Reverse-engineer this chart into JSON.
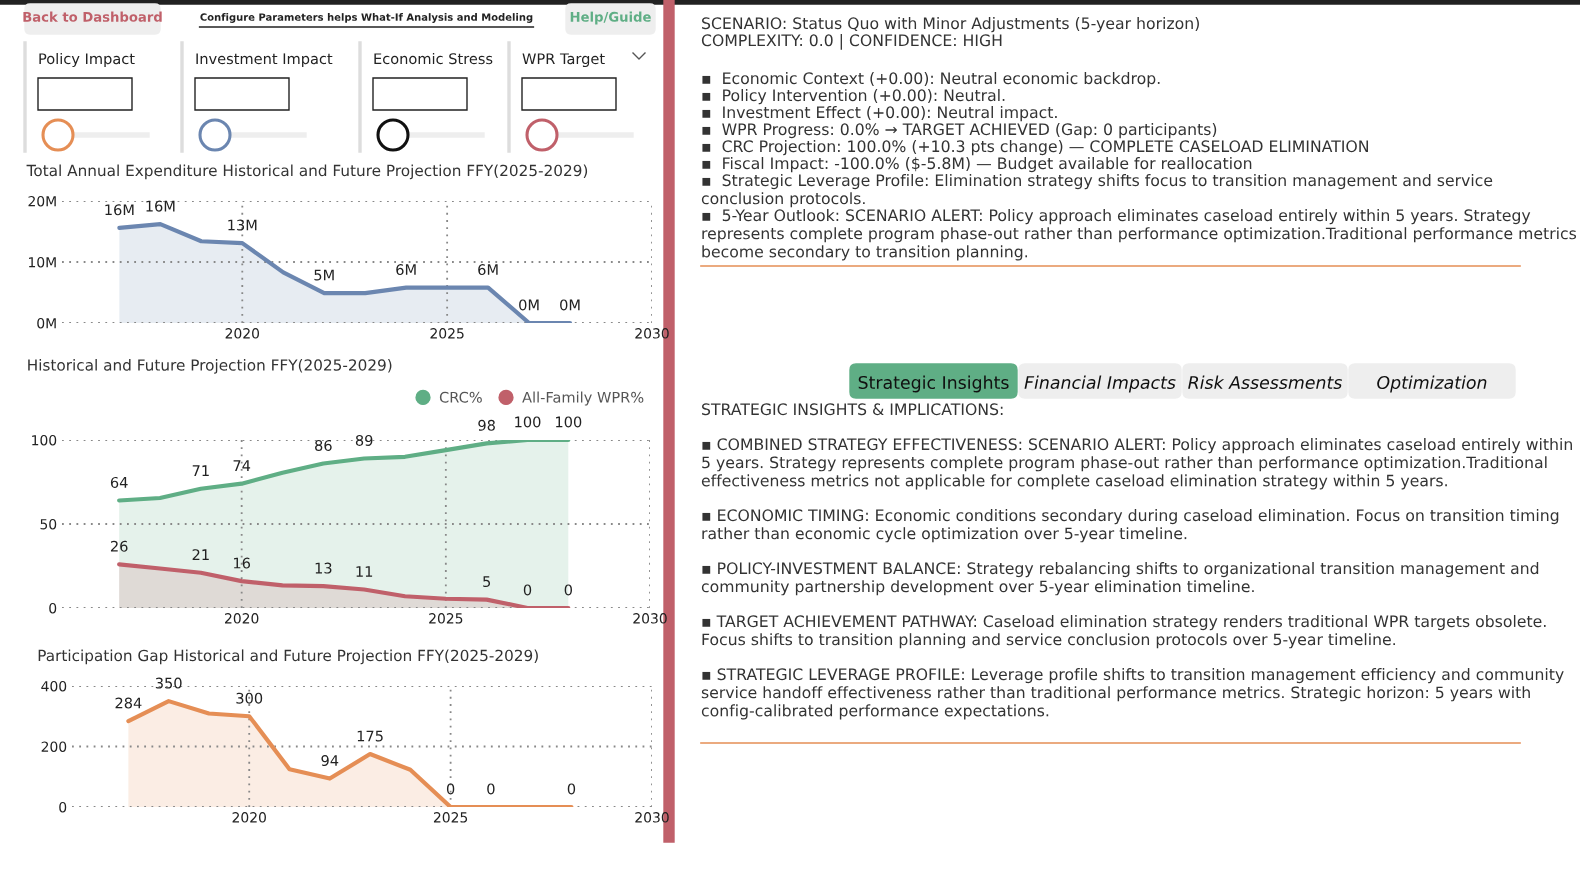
{
  "chart_data": [
    {
      "type": "other",
      "annotations": [
        "Back to Dashboard",
        "Configure Parameters helps What-If Analysis and Modeling",
        "Help/Guide",
        "Policy Impact",
        "Investment Impact",
        "Economic Stress",
        "WPR Target"
      ]
    },
    {
      "type": "area",
      "title": "Total Annual Expenditure Historical and Future Projection FFY(2025-2029)",
      "x": [
        2017,
        2018,
        2019,
        2020,
        2021,
        2022,
        2023,
        2024,
        2025,
        2026,
        2027,
        2028
      ],
      "series": [
        {
          "color": "#6b86b0",
          "values": [
            15.6,
            16.2,
            13.4,
            13.1,
            8.3,
            4.9,
            4.9,
            5.8,
            5.8,
            5.8,
            0,
            0
          ],
          "value_labels": [
            "16M",
            "16M",
            null,
            "13M",
            null,
            "5M",
            null,
            "6M",
            null,
            "6M",
            "0M",
            "0M"
          ]
        }
      ],
      "xlim": [
        2015.6,
        2030
      ],
      "xticks": [
        2020,
        2025,
        2030
      ],
      "ylim": [
        0,
        20
      ],
      "yticks": [
        {
          "value": 0,
          "label": "0M"
        },
        {
          "value": 10,
          "label": "10M"
        },
        {
          "value": 20,
          "label": "20M"
        }
      ],
      "grid": true
    },
    {
      "type": "area",
      "title": "Historical and Future Projection FFY(2025-2029)",
      "x": [
        2017,
        2018,
        2019,
        2020,
        2021,
        2022,
        2023,
        2024,
        2025,
        2026,
        2027,
        2028
      ],
      "series": [
        {
          "name": "CRC%",
          "color": "#5fae85",
          "values": [
            64,
            65.5,
            71,
            74,
            80.5,
            86,
            89,
            90,
            94,
            98,
            100,
            100
          ],
          "value_labels": [
            "64",
            null,
            "71",
            "74",
            null,
            "86",
            "89",
            null,
            null,
            "98",
            "100",
            "100"
          ]
        },
        {
          "name": "All-Family WPR%",
          "color": "#c0606a",
          "values": [
            26,
            23.5,
            21,
            16,
            13.5,
            13,
            11,
            7,
            5.5,
            5,
            0,
            0
          ],
          "value_labels": [
            "26",
            null,
            "21",
            "16",
            null,
            "13",
            "11",
            null,
            null,
            "5",
            "0",
            "0"
          ]
        }
      ],
      "xlim": [
        2015.6,
        2030
      ],
      "xticks": [
        2020,
        2025,
        2030
      ],
      "ylim": [
        0,
        100
      ],
      "yticks": [
        0,
        50,
        100
      ],
      "grid": true,
      "legend": "top right"
    },
    {
      "type": "area",
      "title": "Participation Gap Historical and Future Projection FFY(2025-2029)",
      "x": [
        2017,
        2018,
        2019,
        2020,
        2021,
        2022,
        2023,
        2024,
        2025,
        2026,
        2027,
        2028
      ],
      "series": [
        {
          "color": "#e58e55",
          "values": [
            284,
            350,
            309,
            300,
            125,
            94,
            175,
            123,
            0,
            0,
            0,
            0
          ],
          "value_labels": [
            "284",
            "350",
            null,
            "300",
            null,
            "94",
            "175",
            null,
            "0",
            "0",
            null,
            "0"
          ]
        }
      ],
      "xlim": [
        2015.6,
        2030
      ],
      "xticks": [
        2020,
        2025,
        2030
      ],
      "ylim": [
        0,
        400
      ],
      "yticks": [
        0,
        200,
        400
      ],
      "grid": true
    },
    {
      "type": "other",
      "annotations": [
        "SCENARIO: Status Quo with Minor Adjustments (5-year horizon)",
        "COMPLEXITY: 0.0 | CONFIDENCE: HIGH",
        "▪  Economic Context (+0.00): Neutral economic backdrop.",
        "▪  Policy Intervention (+0.00): Neutral.",
        "▪  Investment Effect (+0.00): Neutral impact.",
        "▪  WPR Progress: 0.0% → TARGET ACHIEVED (Gap: 0 participants)",
        "▪  CRC Projection: 100.0% (+10.3 pts change) — COMPLETE CASELOAD ELIMINATION",
        "▪  Fiscal Impact: -100.0% ($-5.8M) — Budget available for reallocation",
        "▪  Strategic Leverage Profile: Elimination strategy shifts focus to transition management and service conclusion protocols.",
        "▪  5-Year Outlook: SCENARIO ALERT: Policy approach eliminates caseload entirely within 5 years. Strategy represents complete program phase-out rather than performance optimization.Traditional performance metrics become secondary to transition planning."
      ]
    },
    {
      "type": "other",
      "annotations": [
        "Strategic Insights",
        "Financial Impacts",
        "Risk Assessments",
        "Optimization"
      ]
    },
    {
      "type": "other",
      "annotations": [
        "STRATEGIC INSIGHTS & IMPLICATIONS:",
        "▪ COMBINED STRATEGY EFFECTIVENESS: SCENARIO ALERT: Policy approach eliminates caseload entirely within 5 years. Strategy represents complete program phase-out rather than performance optimization.Traditional effectiveness metrics not applicable for complete caseload elimination strategy within 5 years.",
        "▪ ECONOMIC TIMING: Economic conditions secondary during caseload elimination. Focus on transition timing rather than economic cycle optimization over 5-year timeline.",
        "▪ POLICY-INVESTMENT BALANCE: Strategy rebalancing shifts to organizational transition management and community partnership development over 5-year elimination timeline.",
        "▪ TARGET ACHIEVEMENT PATHWAY: Caseload elimination strategy renders traditional WPR targets obsolete. Focus shifts to transition planning and service conclusion protocols over 5-year timeline.",
        "▪ STRATEGIC LEVERAGE PROFILE: Leverage profile shifts to transition management efficiency and community service handoff effectiveness rather than traditional performance metrics. Strategic horizon: 5 years with config-calibrated performance expectations."
      ]
    }
  ]
}
